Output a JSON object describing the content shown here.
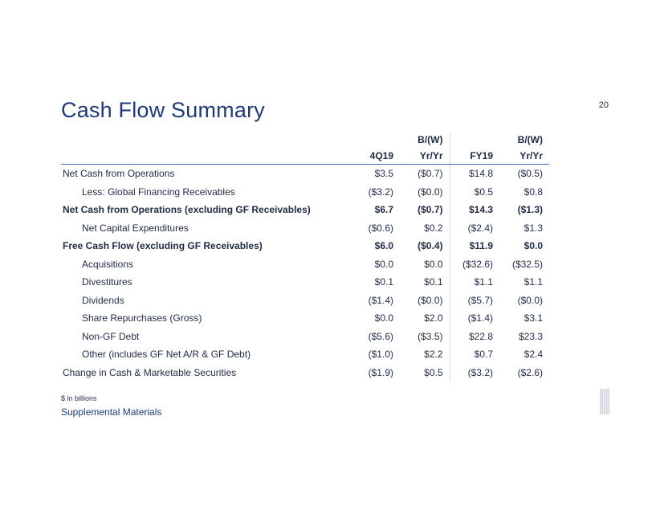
{
  "slide": {
    "page_number": "20",
    "title": "Cash Flow Summary",
    "footnote": "$ in billions",
    "supplemental": "Supplemental Materials",
    "logo_icon": "ibm-logo-icon",
    "logo_color": "#c8ccd4",
    "accent_color": "#3d6cc9"
  },
  "table": {
    "super_headers": [
      "",
      "",
      "B/(W)",
      "",
      "B/(W)"
    ],
    "headers": [
      "",
      "4Q19",
      "Yr/Yr",
      "FY19",
      "Yr/Yr"
    ],
    "rows": [
      {
        "label": "Net Cash from Operations",
        "indent": false,
        "bold": false,
        "values": [
          "$3.5",
          "($0.7)",
          "$14.8",
          "($0.5)"
        ]
      },
      {
        "label": "Less: Global Financing Receivables",
        "indent": true,
        "bold": false,
        "values": [
          "($3.2)",
          "($0.0)",
          "$0.5",
          "$0.8"
        ]
      },
      {
        "label": "Net Cash from Operations (excluding GF Receivables)",
        "indent": false,
        "bold": true,
        "values": [
          "$6.7",
          "($0.7)",
          "$14.3",
          "($1.3)"
        ]
      },
      {
        "label": "Net Capital Expenditures",
        "indent": true,
        "bold": false,
        "values": [
          "($0.6)",
          "$0.2",
          "($2.4)",
          "$1.3"
        ]
      },
      {
        "label": "Free Cash Flow (excluding GF Receivables)",
        "indent": false,
        "bold": true,
        "values": [
          "$6.0",
          "($0.4)",
          "$11.9",
          "$0.0"
        ]
      },
      {
        "label": "Acquisitions",
        "indent": true,
        "bold": false,
        "values": [
          "$0.0",
          "$0.0",
          "($32.6)",
          "($32.5)"
        ]
      },
      {
        "label": "Divestitures",
        "indent": true,
        "bold": false,
        "values": [
          "$0.1",
          "$0.1",
          "$1.1",
          "$1.1"
        ]
      },
      {
        "label": "Dividends",
        "indent": true,
        "bold": false,
        "values": [
          "($1.4)",
          "($0.0)",
          "($5.7)",
          "($0.0)"
        ]
      },
      {
        "label": "Share Repurchases (Gross)",
        "indent": true,
        "bold": false,
        "values": [
          "$0.0",
          "$2.0",
          "($1.4)",
          "$3.1"
        ]
      },
      {
        "label": "Non-GF Debt",
        "indent": true,
        "bold": false,
        "values": [
          "($5.6)",
          "($3.5)",
          "$22.8",
          "$23.3"
        ]
      },
      {
        "label": "Other (includes GF Net A/R & GF Debt)",
        "indent": true,
        "bold": false,
        "values": [
          "($1.0)",
          "$2.2",
          "$0.7",
          "$2.4"
        ]
      },
      {
        "label": "Change in Cash & Marketable Securities",
        "indent": false,
        "bold": false,
        "values": [
          "($1.9)",
          "$0.5",
          "($3.2)",
          "($2.6)"
        ]
      }
    ]
  }
}
